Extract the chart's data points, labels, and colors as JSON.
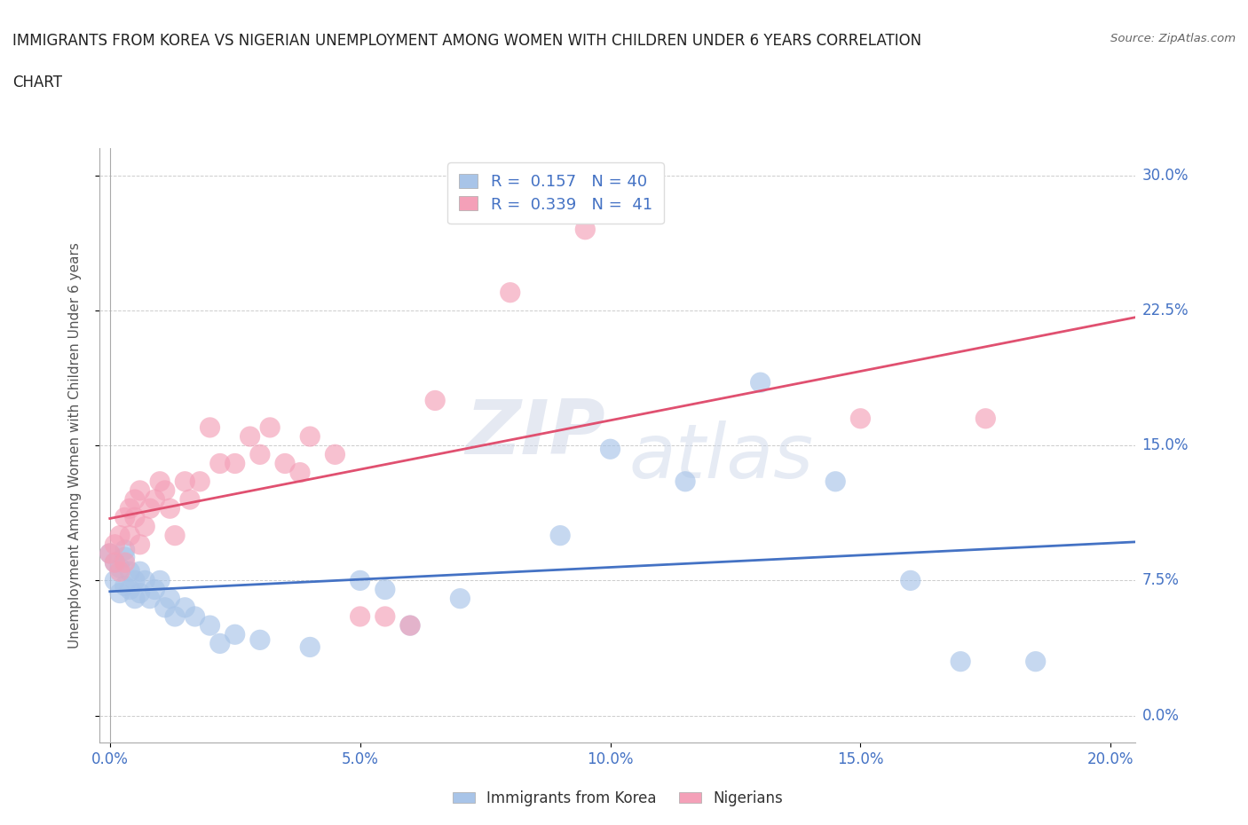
{
  "title_line1": "IMMIGRANTS FROM KOREA VS NIGERIAN UNEMPLOYMENT AMONG WOMEN WITH CHILDREN UNDER 6 YEARS CORRELATION",
  "title_line2": "CHART",
  "source": "Source: ZipAtlas.com",
  "ylabel": "Unemployment Among Women with Children Under 6 years",
  "xlabel_ticks": [
    "0.0%",
    "5.0%",
    "10.0%",
    "15.0%",
    "20.0%"
  ],
  "xlabel_vals": [
    0.0,
    0.05,
    0.1,
    0.15,
    0.2
  ],
  "ylabel_ticks": [
    "0.0%",
    "7.5%",
    "15.0%",
    "22.5%",
    "30.0%"
  ],
  "ylabel_vals": [
    0.0,
    0.075,
    0.15,
    0.225,
    0.3
  ],
  "xlim": [
    -0.002,
    0.205
  ],
  "ylim": [
    -0.015,
    0.315
  ],
  "korea_R": 0.157,
  "korea_N": 40,
  "nigeria_R": 0.339,
  "nigeria_N": 41,
  "korea_scatter_x": [
    0.0,
    0.001,
    0.001,
    0.002,
    0.002,
    0.003,
    0.003,
    0.003,
    0.004,
    0.004,
    0.005,
    0.005,
    0.006,
    0.006,
    0.007,
    0.008,
    0.009,
    0.01,
    0.011,
    0.012,
    0.013,
    0.015,
    0.017,
    0.02,
    0.022,
    0.025,
    0.03,
    0.04,
    0.05,
    0.055,
    0.06,
    0.07,
    0.09,
    0.1,
    0.115,
    0.13,
    0.145,
    0.16,
    0.17,
    0.185
  ],
  "korea_scatter_y": [
    0.09,
    0.075,
    0.085,
    0.068,
    0.082,
    0.072,
    0.088,
    0.092,
    0.07,
    0.08,
    0.075,
    0.065,
    0.08,
    0.068,
    0.075,
    0.065,
    0.07,
    0.075,
    0.06,
    0.065,
    0.055,
    0.06,
    0.055,
    0.05,
    0.04,
    0.045,
    0.042,
    0.038,
    0.075,
    0.07,
    0.05,
    0.065,
    0.1,
    0.148,
    0.13,
    0.185,
    0.13,
    0.075,
    0.03,
    0.03
  ],
  "nigeria_scatter_x": [
    0.0,
    0.001,
    0.001,
    0.002,
    0.002,
    0.003,
    0.003,
    0.004,
    0.004,
    0.005,
    0.005,
    0.006,
    0.006,
    0.007,
    0.008,
    0.009,
    0.01,
    0.011,
    0.012,
    0.013,
    0.015,
    0.016,
    0.018,
    0.02,
    0.022,
    0.025,
    0.028,
    0.03,
    0.032,
    0.035,
    0.038,
    0.04,
    0.045,
    0.05,
    0.055,
    0.06,
    0.065,
    0.08,
    0.095,
    0.15,
    0.175
  ],
  "nigeria_scatter_y": [
    0.09,
    0.085,
    0.095,
    0.08,
    0.1,
    0.11,
    0.085,
    0.1,
    0.115,
    0.12,
    0.11,
    0.125,
    0.095,
    0.105,
    0.115,
    0.12,
    0.13,
    0.125,
    0.115,
    0.1,
    0.13,
    0.12,
    0.13,
    0.16,
    0.14,
    0.14,
    0.155,
    0.145,
    0.16,
    0.14,
    0.135,
    0.155,
    0.145,
    0.055,
    0.055,
    0.05,
    0.175,
    0.235,
    0.27,
    0.165,
    0.165
  ],
  "korea_line_color": "#4472c4",
  "nigeria_line_color": "#e05070",
  "korea_marker_color": "#a8c4e8",
  "nigeria_marker_color": "#f4a0b8",
  "watermark_zip": "ZIP",
  "watermark_atlas": "atlas",
  "background_color": "#ffffff",
  "grid_color": "#cccccc"
}
